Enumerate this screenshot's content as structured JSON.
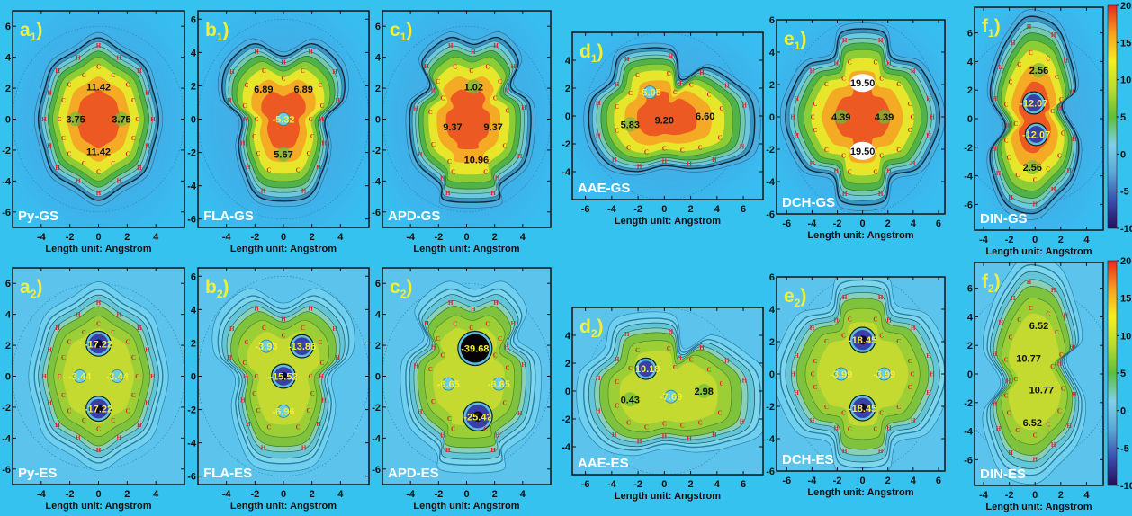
{
  "figure": {
    "background_color": "#36c2ee",
    "colorbar": {
      "ticks": [
        "20",
        "15",
        "10",
        "5",
        "0",
        "-5",
        "-10"
      ],
      "range": [
        -10,
        20
      ],
      "stops": [
        "#2a0a5e",
        "#3a4fb0",
        "#5aa8d8",
        "#7fd0e8",
        "#5cbf3a",
        "#b8dd30",
        "#f5ef20",
        "#f7a020",
        "#e8281e"
      ]
    }
  },
  "chart_data": [
    {
      "type": "heatmap",
      "id": "a1",
      "label": "a",
      "sub": "1",
      "molecule": "Py-GS",
      "xlabel": "Length unit: Angstrom",
      "xticks": [
        "-4",
        "-2",
        "0",
        "2",
        "4"
      ],
      "yticks": [
        "6",
        "4",
        "2",
        "0",
        "-2",
        "-4",
        "-6"
      ],
      "xlim": [
        -6,
        6
      ],
      "ylim": [
        -7,
        7
      ],
      "ring_values": [
        {
          "text": "11.42",
          "x": 0,
          "y": 2.1,
          "color": "dark"
        },
        {
          "text": "3.75",
          "x": -1.6,
          "y": 0,
          "color": "dark"
        },
        {
          "text": "3.75",
          "x": 1.6,
          "y": 0,
          "color": "dark"
        },
        {
          "text": "11.42",
          "x": 0,
          "y": -2.1,
          "color": "dark"
        }
      ]
    },
    {
      "type": "heatmap",
      "id": "b1",
      "label": "b",
      "sub": "1",
      "molecule": "FLA-GS",
      "xlabel": "Length unit: Angstrom",
      "xticks": [
        "-4",
        "-2",
        "0",
        "2",
        "4"
      ],
      "yticks": [
        "6",
        "4",
        "2",
        "0",
        "-2",
        "-4",
        "-6"
      ],
      "xlim": [
        -6,
        6
      ],
      "ylim": [
        -6.5,
        6.5
      ],
      "ring_values": [
        {
          "text": "6.89",
          "x": -1.4,
          "y": 1.8,
          "color": "dark"
        },
        {
          "text": "6.89",
          "x": 1.4,
          "y": 1.8,
          "color": "dark"
        },
        {
          "text": "-5.32",
          "x": 0,
          "y": 0,
          "color": "yellow"
        },
        {
          "text": "5.67",
          "x": 0,
          "y": -2.1,
          "color": "dark"
        }
      ]
    },
    {
      "type": "heatmap",
      "id": "c1",
      "label": "c",
      "sub": "1",
      "molecule": "APD-GS",
      "xlabel": "Length unit: Angstrom",
      "xticks": [
        "-4",
        "-2",
        "0",
        "2",
        "4"
      ],
      "yticks": [
        "6",
        "4",
        "2",
        "0",
        "-2",
        "-4",
        "-6"
      ],
      "xlim": [
        -6,
        6
      ],
      "ylim": [
        -7,
        7
      ],
      "ring_values": [
        {
          "text": "1.02",
          "x": 0.5,
          "y": 2.1,
          "color": "dark"
        },
        {
          "text": "9.37",
          "x": -1.0,
          "y": -0.5,
          "color": "dark"
        },
        {
          "text": "9.37",
          "x": 1.9,
          "y": -0.5,
          "color": "dark"
        },
        {
          "text": "10.96",
          "x": 0.7,
          "y": -2.6,
          "color": "dark"
        }
      ]
    },
    {
      "type": "heatmap",
      "id": "d1",
      "label": "d",
      "sub": "1",
      "molecule": "AAE-GS",
      "xlabel": "Length unit: Angstrom",
      "xticks": [
        "-6",
        "-4",
        "-2",
        "0",
        "2",
        "4",
        "6"
      ],
      "yticks": [
        "4",
        "2",
        "0",
        "-2",
        "-4"
      ],
      "xlim": [
        -7,
        7.5
      ],
      "ylim": [
        -6,
        6
      ],
      "ring_values": [
        {
          "text": "-5.05",
          "x": -1.1,
          "y": 1.7,
          "color": "yellow"
        },
        {
          "text": "5.83",
          "x": -2.6,
          "y": -0.6,
          "color": "dark"
        },
        {
          "text": "9.20",
          "x": 0,
          "y": -0.3,
          "color": "dark"
        },
        {
          "text": "6.60",
          "x": 3.1,
          "y": 0,
          "color": "dark"
        }
      ]
    },
    {
      "type": "heatmap",
      "id": "e1",
      "label": "e",
      "sub": "1",
      "molecule": "DCH-GS",
      "xlabel": "Length unit: Angstrom",
      "xticks": [
        "-6",
        "-4",
        "-2",
        "0",
        "2",
        "4",
        "6"
      ],
      "yticks": [
        "6",
        "4",
        "2",
        "0",
        "-2",
        "-4",
        "-6"
      ],
      "xlim": [
        -6.8,
        6.5
      ],
      "ylim": [
        -6,
        6
      ],
      "ring_values": [
        {
          "text": "19.50",
          "x": 0,
          "y": 2.1,
          "color": "dark"
        },
        {
          "text": "4.39",
          "x": -1.7,
          "y": 0,
          "color": "dark"
        },
        {
          "text": "4.39",
          "x": 1.7,
          "y": 0,
          "color": "dark"
        },
        {
          "text": "19.50",
          "x": 0,
          "y": -2.1,
          "color": "dark"
        }
      ]
    },
    {
      "type": "heatmap",
      "id": "f1",
      "label": "f",
      "sub": "1",
      "molecule": "DIN-GS",
      "xlabel": "Length unit: Angstrom",
      "xticks": [
        "-4",
        "-2",
        "0",
        "2",
        "4"
      ],
      "yticks": [
        "6",
        "4",
        "2",
        "0",
        "-2",
        "-4",
        "-6"
      ],
      "xlim": [
        -4.7,
        5.3
      ],
      "ylim": [
        -7.8,
        7.8
      ],
      "ring_values": [
        {
          "text": "2.56",
          "x": 0.3,
          "y": 3.4,
          "color": "dark"
        },
        {
          "text": "-12.07",
          "x": -0.1,
          "y": 1.1,
          "color": "yellow"
        },
        {
          "text": "-12.07",
          "x": 0.1,
          "y": -1.1,
          "color": "yellow"
        },
        {
          "text": "2.56",
          "x": -0.2,
          "y": -3.4,
          "color": "dark"
        }
      ]
    },
    {
      "type": "heatmap",
      "id": "a2",
      "label": "a",
      "sub": "2",
      "molecule": "Py-ES",
      "xlabel": "Length unit: Angstrom",
      "xticks": [
        "-4",
        "-2",
        "0",
        "2",
        "4"
      ],
      "yticks": [
        "6",
        "4",
        "2",
        "0",
        "-2",
        "-4",
        "-6"
      ],
      "xlim": [
        -6,
        6
      ],
      "ylim": [
        -7,
        7
      ],
      "ring_values": [
        {
          "text": "-17.22",
          "x": 0,
          "y": 2.1,
          "color": "yellow"
        },
        {
          "text": "-3.44",
          "x": -1.3,
          "y": 0,
          "color": "yellow"
        },
        {
          "text": "-3.44",
          "x": 1.3,
          "y": 0,
          "color": "yellow"
        },
        {
          "text": "-17.22",
          "x": 0,
          "y": -2.1,
          "color": "yellow"
        }
      ]
    },
    {
      "type": "heatmap",
      "id": "b2",
      "label": "b",
      "sub": "2",
      "molecule": "FLA-ES",
      "xlabel": "Length unit: Angstrom",
      "xticks": [
        "-4",
        "-2",
        "0",
        "2",
        "4"
      ],
      "yticks": [
        "6",
        "4",
        "2",
        "0",
        "-2",
        "-4",
        "-6"
      ],
      "xlim": [
        -6,
        6
      ],
      "ylim": [
        -6.5,
        6.5
      ],
      "ring_values": [
        {
          "text": "-3.93",
          "x": -1.2,
          "y": 1.8,
          "color": "yellow"
        },
        {
          "text": "-13.86",
          "x": 1.3,
          "y": 1.8,
          "color": "yellow"
        },
        {
          "text": "-15.52",
          "x": 0,
          "y": 0,
          "color": "yellow"
        },
        {
          "text": "-6.96",
          "x": 0,
          "y": -2.1,
          "color": "yellow"
        }
      ]
    },
    {
      "type": "heatmap",
      "id": "c2",
      "label": "c",
      "sub": "2",
      "molecule": "APD-ES",
      "xlabel": "Length unit: Angstrom",
      "xticks": [
        "-4",
        "-2",
        "0",
        "2",
        "4"
      ],
      "yticks": [
        "6",
        "4",
        "2",
        "0",
        "-2",
        "-4",
        "-6"
      ],
      "xlim": [
        -6,
        6
      ],
      "ylim": [
        -7,
        7
      ],
      "ring_values": [
        {
          "text": "-39.68",
          "x": 0.6,
          "y": 1.8,
          "color": "yellow"
        },
        {
          "text": "-6.65",
          "x": -1.3,
          "y": -0.5,
          "color": "yellow"
        },
        {
          "text": "-6.65",
          "x": 2.3,
          "y": -0.5,
          "color": "yellow"
        },
        {
          "text": "-25.42",
          "x": 0.8,
          "y": -2.6,
          "color": "yellow"
        }
      ]
    },
    {
      "type": "heatmap",
      "id": "d2",
      "label": "d",
      "sub": "2",
      "molecule": "AAE-ES",
      "xlabel": "Length unit: Angstrom",
      "xticks": [
        "-6",
        "-4",
        "-2",
        "0",
        "2",
        "4",
        "6"
      ],
      "yticks": [
        "4",
        "2",
        "0",
        "-2",
        "-4"
      ],
      "xlim": [
        -7,
        7.5
      ],
      "ylim": [
        -6,
        6
      ],
      "ring_values": [
        {
          "text": "-10.18",
          "x": -1.4,
          "y": 1.6,
          "color": "yellow"
        },
        {
          "text": "0.43",
          "x": -2.6,
          "y": -0.6,
          "color": "dark"
        },
        {
          "text": "-7.69",
          "x": 0.5,
          "y": -0.4,
          "color": "yellow"
        },
        {
          "text": "2.98",
          "x": 3.0,
          "y": 0,
          "color": "dark"
        }
      ]
    },
    {
      "type": "heatmap",
      "id": "e2",
      "label": "e",
      "sub": "2",
      "molecule": "DCH-ES",
      "xlabel": "Length unit: Angstrom",
      "xticks": [
        "-6",
        "-4",
        "-2",
        "0",
        "2",
        "4",
        "6"
      ],
      "yticks": [
        "6",
        "4",
        "2",
        "0",
        "-2",
        "-4",
        "-6"
      ],
      "xlim": [
        -6.8,
        6.5
      ],
      "ylim": [
        -6,
        6
      ],
      "ring_values": [
        {
          "text": "-18.45",
          "x": 0,
          "y": 2.1,
          "color": "yellow"
        },
        {
          "text": "-3.99",
          "x": -1.7,
          "y": 0,
          "color": "yellow"
        },
        {
          "text": "-3.99",
          "x": 1.7,
          "y": 0,
          "color": "yellow"
        },
        {
          "text": "-18.45",
          "x": 0,
          "y": -2.1,
          "color": "yellow"
        }
      ]
    },
    {
      "type": "heatmap",
      "id": "f2",
      "label": "f",
      "sub": "2",
      "molecule": "DIN-ES",
      "xlabel": "Length unit: Angstrom",
      "xticks": [
        "-4",
        "-2",
        "0",
        "2",
        "4"
      ],
      "yticks": [
        "6",
        "4",
        "2",
        "0",
        "-2",
        "-4",
        "-6"
      ],
      "xlim": [
        -4.7,
        5.3
      ],
      "ylim": [
        -7.8,
        7.8
      ],
      "ring_values": [
        {
          "text": "6.52",
          "x": 0.3,
          "y": 3.4,
          "color": "dark"
        },
        {
          "text": "10.77",
          "x": -0.5,
          "y": 1.1,
          "color": "dark"
        },
        {
          "text": "10.77",
          "x": 0.5,
          "y": -1.1,
          "color": "dark"
        },
        {
          "text": "6.52",
          "x": -0.2,
          "y": -3.4,
          "color": "dark"
        }
      ]
    }
  ]
}
